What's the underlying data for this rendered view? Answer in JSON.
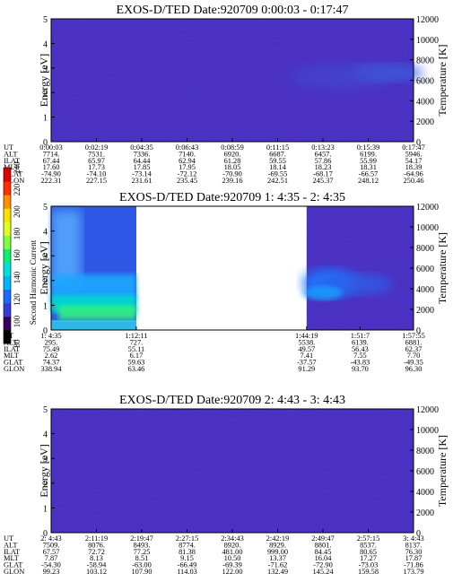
{
  "chart_data": [
    {
      "type": "heatmap",
      "title": "EXOS-D/TED   Date:920709  0:00:03 - 0:17:47",
      "ylabel": "Energy [eV]",
      "y2label": "Temperature [K]",
      "ylim": [
        0,
        5
      ],
      "y2lim": [
        0,
        12000
      ],
      "yticks": [
        "0",
        "1",
        "2",
        "3",
        "4",
        "5"
      ],
      "y2ticks": [
        "0",
        "2000",
        "4000",
        "6000",
        "8000",
        "10000",
        "12000"
      ],
      "background_value": 100,
      "data_coverage": [
        [
          0,
          1
        ]
      ],
      "table": {
        "row_labels": [
          "UT",
          "ALT",
          "ILAT",
          "MLT",
          "GLAT",
          "GLON"
        ],
        "columns": [
          [
            "0:00:03",
            "7714.",
            "67.44",
            "17.60",
            "-74.90",
            "222.31"
          ],
          [
            "0:02:19",
            "7531.",
            "65.97",
            "17.73",
            "-74.10",
            "227.15"
          ],
          [
            "0:04:35",
            "7336.",
            "64.44",
            "17.85",
            "-73.14",
            "231.61"
          ],
          [
            "0:06:43",
            "7140.",
            "62.94",
            "17.95",
            "-72.12",
            "235.45"
          ],
          [
            "0:08:59",
            "6920.",
            "61.28",
            "18.05",
            "-70.90",
            "239.16"
          ],
          [
            "0:11:15",
            "6687.",
            "59.55",
            "18.14",
            "-69.55",
            "242.51"
          ],
          [
            "0:13:23",
            "6457.",
            "57.86",
            "18.23",
            "-68.17",
            "245.37"
          ],
          [
            "0:15:39",
            "6199.",
            "55.99",
            "18.31",
            "-66.57",
            "248.12"
          ],
          [
            "0:17:47",
            "5946.",
            "54.17",
            "18.39",
            "-64.96",
            "250.46"
          ]
        ]
      }
    },
    {
      "type": "heatmap",
      "title": "EXOS-D/TED   Date:920709  1: 4:35 - 2: 4:35",
      "ylabel": "Energy [eV]",
      "y2label": "Temperature [K]",
      "ylim": [
        0,
        5
      ],
      "y2lim": [
        0,
        12000
      ],
      "yticks": [
        "0",
        "1",
        "2",
        "3",
        "4",
        "5"
      ],
      "y2ticks": [
        "0",
        "2000",
        "4000",
        "6000",
        "8000",
        "10000",
        "12000"
      ],
      "background_value": 100,
      "data_coverage": [
        [
          0,
          0.235
        ],
        [
          0.705,
          1
        ]
      ],
      "table": {
        "row_labels": [
          "UT",
          "ALT",
          "ILAT",
          "MLT",
          "GLAT",
          "GLON"
        ],
        "columns": [
          [
            "1: 4:35",
            "295.",
            "75.49",
            "2.62",
            "74.37",
            "338.94"
          ],
          [
            "1:12:11",
            "727.",
            "55.11",
            "6.17",
            "59.63",
            "63.46"
          ],
          [
            "1:44:19",
            "5538.",
            "49.57",
            "7.41",
            "-37.57",
            "91.29"
          ],
          [
            "1:51:7",
            "6139.",
            "56.43",
            "7.55",
            "-43.83",
            "93.70"
          ],
          [
            "1:57:55",
            "6881.",
            "62.37",
            "7.70",
            "-49.35",
            "96.30"
          ]
        ]
      },
      "colorbar": {
        "label": "Second Harmonic Current",
        "ticks": [
          "80",
          "100",
          "120",
          "140",
          "160",
          "180",
          "200",
          "220",
          "240"
        ],
        "range": [
          80,
          240
        ],
        "colors": [
          "#000000",
          "#3a0060",
          "#3a3ad8",
          "#1a6cff",
          "#00b4ff",
          "#00e0e0",
          "#10f070",
          "#80ff40",
          "#e0ff20",
          "#ffe000",
          "#ff9000",
          "#ff3000",
          "#e00000"
        ]
      }
    },
    {
      "type": "heatmap",
      "title": "EXOS-D/TED   Date:920709  2: 4:43 - 3: 4:43",
      "ylabel": "Energy [eV]",
      "y2label": "Temperature [K]",
      "ylim": [
        0,
        5
      ],
      "y2lim": [
        0,
        12000
      ],
      "yticks": [
        "0",
        "1",
        "2",
        "3",
        "4",
        "5"
      ],
      "y2ticks": [
        "0",
        "2000",
        "4000",
        "6000",
        "8000",
        "10000",
        "12000"
      ],
      "background_value": 100,
      "data_coverage": [
        [
          0,
          1
        ]
      ],
      "table": {
        "row_labels": [
          "UT",
          "ALT",
          "ILAT",
          "MLT",
          "GLAT",
          "GLON"
        ],
        "columns": [
          [
            "2: 4:43",
            "7509.",
            "67.57",
            "7.87",
            "-54.30",
            "99.23"
          ],
          [
            "2:11:19",
            "8076.",
            "72.72",
            "8.13",
            "-58.94",
            "103.12"
          ],
          [
            "2:19:47",
            "8493.",
            "77.25",
            "8.51",
            "-63.00",
            "107.90"
          ],
          [
            "2:27:15",
            "8774.",
            "81.38",
            "9.15",
            "-66.49",
            "114.03"
          ],
          [
            "2:34:43",
            "8920.",
            "481.00",
            "10.50",
            "-69.39",
            "122.00"
          ],
          [
            "2:42:19",
            "8929.",
            "999.00",
            "13.37",
            "-71.62",
            "132.49"
          ],
          [
            "2:49:47",
            "8801.",
            "84.45",
            "16.04",
            "-72.90",
            "145.24"
          ],
          [
            "2:57:15",
            "8537.",
            "80.65",
            "17.27",
            "-73.03",
            "159.58"
          ],
          [
            "3: 4:43",
            "8137.",
            "76.30",
            "17.87",
            "-71.86",
            "173.79"
          ]
        ]
      }
    }
  ]
}
